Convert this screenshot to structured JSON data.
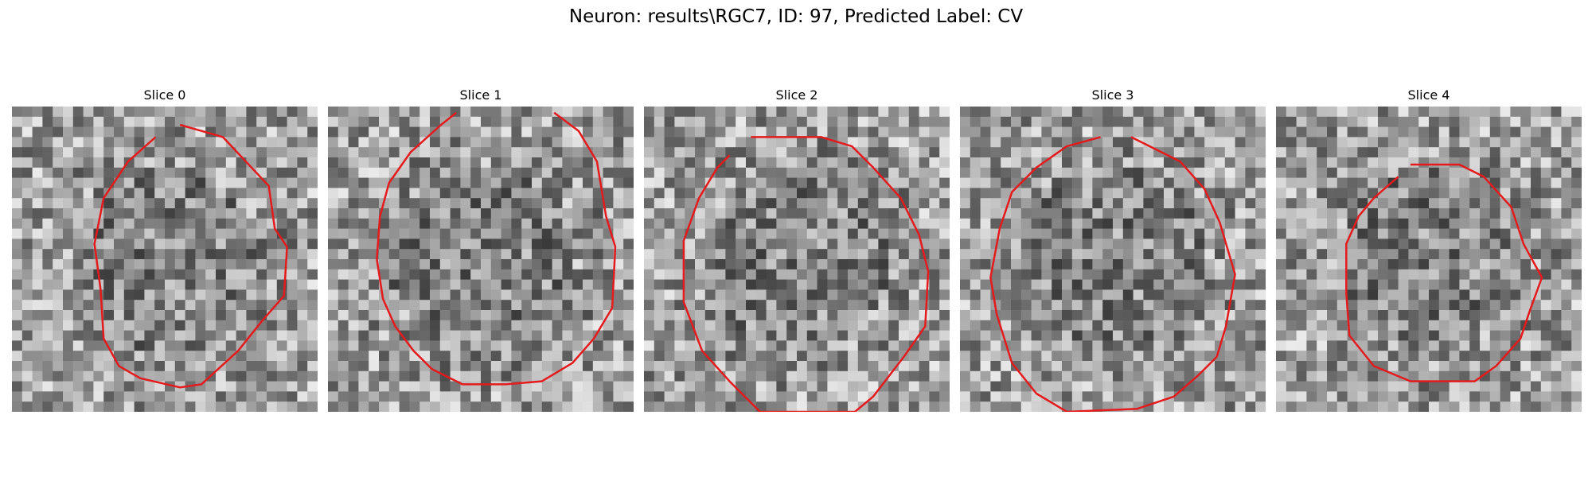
{
  "figure": {
    "title": "Neuron: results\\RGC7, ID: 97, Predicted Label: CV"
  },
  "colors": {
    "contour": "#e41a1c",
    "background": "#ffffff"
  },
  "slices": [
    {
      "title": "Slice 0",
      "seed": 11,
      "contour": [
        [
          0.55,
          0.06
        ],
        [
          0.69,
          0.1
        ],
        [
          0.84,
          0.26
        ],
        [
          0.86,
          0.4
        ],
        [
          0.9,
          0.46
        ],
        [
          0.89,
          0.62
        ],
        [
          0.82,
          0.7
        ],
        [
          0.74,
          0.8
        ],
        [
          0.62,
          0.91
        ],
        [
          0.55,
          0.92
        ],
        [
          0.42,
          0.89
        ],
        [
          0.35,
          0.85
        ],
        [
          0.3,
          0.76
        ],
        [
          0.29,
          0.6
        ],
        [
          0.27,
          0.45
        ],
        [
          0.3,
          0.3
        ],
        [
          0.38,
          0.18
        ],
        [
          0.47,
          0.1
        ]
      ]
    },
    {
      "title": "Slice 1",
      "seed": 23,
      "contour": [
        [
          0.74,
          0.02
        ],
        [
          0.82,
          0.08
        ],
        [
          0.88,
          0.18
        ],
        [
          0.91,
          0.36
        ],
        [
          0.94,
          0.46
        ],
        [
          0.93,
          0.66
        ],
        [
          0.87,
          0.76
        ],
        [
          0.8,
          0.84
        ],
        [
          0.7,
          0.9
        ],
        [
          0.58,
          0.91
        ],
        [
          0.44,
          0.91
        ],
        [
          0.34,
          0.86
        ],
        [
          0.28,
          0.8
        ],
        [
          0.22,
          0.72
        ],
        [
          0.18,
          0.63
        ],
        [
          0.16,
          0.5
        ],
        [
          0.17,
          0.36
        ],
        [
          0.2,
          0.25
        ],
        [
          0.27,
          0.15
        ],
        [
          0.37,
          0.06
        ],
        [
          0.42,
          0.02
        ]
      ]
    },
    {
      "title": "Slice 2",
      "seed": 37,
      "contour": [
        [
          0.35,
          0.1
        ],
        [
          0.48,
          0.1
        ],
        [
          0.58,
          0.1
        ],
        [
          0.68,
          0.13
        ],
        [
          0.75,
          0.2
        ],
        [
          0.84,
          0.3
        ],
        [
          0.9,
          0.42
        ],
        [
          0.93,
          0.54
        ],
        [
          0.92,
          0.72
        ],
        [
          0.85,
          0.82
        ],
        [
          0.75,
          0.95
        ],
        [
          0.69,
          1.0
        ],
        [
          0.38,
          1.0
        ],
        [
          0.28,
          0.9
        ],
        [
          0.19,
          0.8
        ],
        [
          0.13,
          0.64
        ],
        [
          0.13,
          0.44
        ],
        [
          0.18,
          0.3
        ],
        [
          0.24,
          0.2
        ],
        [
          0.28,
          0.16
        ]
      ]
    },
    {
      "title": "Slice 3",
      "seed": 53,
      "contour": [
        [
          0.56,
          0.1
        ],
        [
          0.64,
          0.14
        ],
        [
          0.72,
          0.18
        ],
        [
          0.8,
          0.27
        ],
        [
          0.85,
          0.38
        ],
        [
          0.9,
          0.55
        ],
        [
          0.87,
          0.72
        ],
        [
          0.84,
          0.82
        ],
        [
          0.78,
          0.88
        ],
        [
          0.7,
          0.95
        ],
        [
          0.58,
          0.99
        ],
        [
          0.35,
          1.0
        ],
        [
          0.25,
          0.94
        ],
        [
          0.17,
          0.84
        ],
        [
          0.12,
          0.68
        ],
        [
          0.1,
          0.56
        ],
        [
          0.13,
          0.4
        ],
        [
          0.17,
          0.28
        ],
        [
          0.25,
          0.2
        ],
        [
          0.35,
          0.13
        ],
        [
          0.46,
          0.1
        ]
      ]
    },
    {
      "title": "Slice 4",
      "seed": 71,
      "contour": [
        [
          0.44,
          0.19
        ],
        [
          0.6,
          0.19
        ],
        [
          0.68,
          0.23
        ],
        [
          0.77,
          0.33
        ],
        [
          0.81,
          0.45
        ],
        [
          0.87,
          0.56
        ],
        [
          0.83,
          0.67
        ],
        [
          0.8,
          0.76
        ],
        [
          0.72,
          0.85
        ],
        [
          0.65,
          0.9
        ],
        [
          0.52,
          0.9
        ],
        [
          0.44,
          0.9
        ],
        [
          0.32,
          0.85
        ],
        [
          0.24,
          0.75
        ],
        [
          0.23,
          0.61
        ],
        [
          0.23,
          0.45
        ],
        [
          0.27,
          0.36
        ],
        [
          0.32,
          0.3
        ],
        [
          0.4,
          0.23
        ]
      ]
    }
  ]
}
